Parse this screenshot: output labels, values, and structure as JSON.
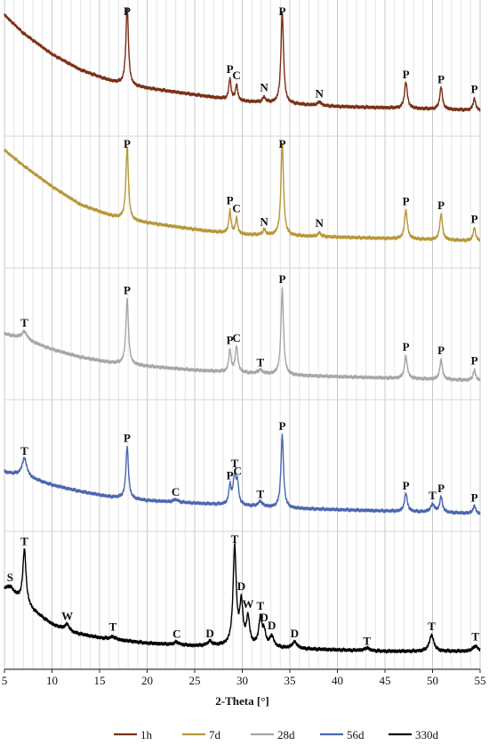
{
  "chart_data": {
    "type": "line",
    "xlabel": "2-Theta [°]",
    "xlim": [
      5,
      55
    ],
    "xticks": [
      5,
      10,
      15,
      20,
      25,
      30,
      35,
      40,
      45,
      50,
      55
    ],
    "grid": "vertical, every 1° (minor)",
    "legend_placement": "bottom-center",
    "series": [
      {
        "name": "1h",
        "color": "#7b2f16",
        "baseline": [
          [
            5,
            0.08
          ],
          [
            7,
            0.22
          ],
          [
            10,
            0.38
          ],
          [
            13,
            0.5
          ],
          [
            16,
            0.58
          ],
          [
            18,
            0.62
          ],
          [
            22,
            0.66
          ],
          [
            26,
            0.7
          ],
          [
            30,
            0.74
          ],
          [
            35,
            0.76
          ],
          [
            40,
            0.78
          ],
          [
            45,
            0.79
          ],
          [
            50,
            0.8
          ],
          [
            55,
            0.81
          ]
        ],
        "peaks": [
          {
            "x": 17.9,
            "h": 0.6,
            "w": 0.16,
            "label": "P"
          },
          {
            "x": 28.7,
            "h": 0.16,
            "w": 0.14,
            "label": "P"
          },
          {
            "x": 29.4,
            "h": 0.12,
            "w": 0.14,
            "label": "C"
          },
          {
            "x": 32.3,
            "h": 0.04,
            "w": 0.18,
            "label": "N"
          },
          {
            "x": 34.2,
            "h": 0.7,
            "w": 0.16,
            "label": "P"
          },
          {
            "x": 38.1,
            "h": 0.03,
            "w": 0.2,
            "label": "N"
          },
          {
            "x": 47.2,
            "h": 0.2,
            "w": 0.18,
            "label": "P"
          },
          {
            "x": 50.9,
            "h": 0.17,
            "w": 0.17,
            "label": "P"
          },
          {
            "x": 54.4,
            "h": 0.09,
            "w": 0.16,
            "label": "P"
          }
        ]
      },
      {
        "name": "7d",
        "color": "#b79736",
        "baseline": [
          [
            5,
            0.1
          ],
          [
            7,
            0.22
          ],
          [
            10,
            0.38
          ],
          [
            13,
            0.52
          ],
          [
            16,
            0.6
          ],
          [
            18,
            0.64
          ],
          [
            22,
            0.68
          ],
          [
            26,
            0.72
          ],
          [
            30,
            0.75
          ],
          [
            35,
            0.76
          ],
          [
            40,
            0.77
          ],
          [
            45,
            0.78
          ],
          [
            50,
            0.79
          ],
          [
            55,
            0.8
          ]
        ],
        "peaks": [
          {
            "x": 17.9,
            "h": 0.56,
            "w": 0.16,
            "label": "P"
          },
          {
            "x": 28.7,
            "h": 0.17,
            "w": 0.14,
            "label": "P"
          },
          {
            "x": 29.4,
            "h": 0.12,
            "w": 0.14,
            "label": "C"
          },
          {
            "x": 32.3,
            "h": 0.04,
            "w": 0.18,
            "label": "N"
          },
          {
            "x": 34.2,
            "h": 0.72,
            "w": 0.16,
            "label": "P"
          },
          {
            "x": 38.1,
            "h": 0.03,
            "w": 0.2,
            "label": "N"
          },
          {
            "x": 47.2,
            "h": 0.22,
            "w": 0.18,
            "label": "P"
          },
          {
            "x": 50.9,
            "h": 0.2,
            "w": 0.17,
            "label": "P"
          },
          {
            "x": 54.4,
            "h": 0.1,
            "w": 0.16,
            "label": "P"
          }
        ]
      },
      {
        "name": "28d",
        "color": "#a6a6a6",
        "baseline": [
          [
            5,
            0.5
          ],
          [
            7,
            0.54
          ],
          [
            10,
            0.62
          ],
          [
            13,
            0.68
          ],
          [
            16,
            0.72
          ],
          [
            20,
            0.75
          ],
          [
            25,
            0.78
          ],
          [
            30,
            0.8
          ],
          [
            35,
            0.82
          ],
          [
            40,
            0.83
          ],
          [
            45,
            0.84
          ],
          [
            50,
            0.85
          ],
          [
            55,
            0.86
          ]
        ],
        "peaks": [
          {
            "x": 7.1,
            "h": 0.06,
            "w": 0.35,
            "label": "T"
          },
          {
            "x": 17.9,
            "h": 0.5,
            "w": 0.16,
            "label": "P"
          },
          {
            "x": 28.7,
            "h": 0.17,
            "w": 0.14,
            "label": "P"
          },
          {
            "x": 29.4,
            "h": 0.2,
            "w": 0.16,
            "label": "C"
          },
          {
            "x": 31.9,
            "h": 0.03,
            "w": 0.25,
            "label": "T"
          },
          {
            "x": 34.2,
            "h": 0.66,
            "w": 0.16,
            "label": "P"
          },
          {
            "x": 47.2,
            "h": 0.17,
            "w": 0.18,
            "label": "P"
          },
          {
            "x": 50.9,
            "h": 0.15,
            "w": 0.17,
            "label": "P"
          },
          {
            "x": 54.4,
            "h": 0.08,
            "w": 0.16,
            "label": "P"
          }
        ]
      },
      {
        "name": "56d",
        "color": "#4a66b0",
        "baseline": [
          [
            5,
            0.55
          ],
          [
            7,
            0.58
          ],
          [
            10,
            0.65
          ],
          [
            13,
            0.7
          ],
          [
            16,
            0.74
          ],
          [
            20,
            0.77
          ],
          [
            25,
            0.79
          ],
          [
            30,
            0.81
          ],
          [
            35,
            0.83
          ],
          [
            40,
            0.84
          ],
          [
            45,
            0.85
          ],
          [
            50,
            0.86
          ],
          [
            55,
            0.87
          ]
        ],
        "peaks": [
          {
            "x": 7.1,
            "h": 0.14,
            "w": 0.3,
            "label": "T"
          },
          {
            "x": 17.9,
            "h": 0.4,
            "w": 0.16,
            "label": "P"
          },
          {
            "x": 23.0,
            "h": 0.02,
            "w": 0.3,
            "label": "C"
          },
          {
            "x": 28.7,
            "h": 0.14,
            "w": 0.14,
            "label": "P"
          },
          {
            "x": 29.2,
            "h": 0.22,
            "w": 0.2,
            "label": "T"
          },
          {
            "x": 29.5,
            "h": 0.14,
            "w": 0.14,
            "label": "C"
          },
          {
            "x": 31.9,
            "h": 0.04,
            "w": 0.25,
            "label": "T"
          },
          {
            "x": 34.2,
            "h": 0.56,
            "w": 0.16,
            "label": "P"
          },
          {
            "x": 47.2,
            "h": 0.14,
            "w": 0.18,
            "label": "P"
          },
          {
            "x": 50.0,
            "h": 0.06,
            "w": 0.25,
            "label": "T"
          },
          {
            "x": 50.9,
            "h": 0.12,
            "w": 0.17,
            "label": "P"
          },
          {
            "x": 54.4,
            "h": 0.06,
            "w": 0.16,
            "label": "P"
          }
        ]
      },
      {
        "name": "330d",
        "color": "#000000",
        "baseline": [
          [
            5,
            0.42
          ],
          [
            6,
            0.46
          ],
          [
            8,
            0.58
          ],
          [
            10,
            0.68
          ],
          [
            12,
            0.74
          ],
          [
            15,
            0.78
          ],
          [
            20,
            0.82
          ],
          [
            25,
            0.84
          ],
          [
            30,
            0.84
          ],
          [
            35,
            0.86
          ],
          [
            40,
            0.87
          ],
          [
            45,
            0.88
          ],
          [
            50,
            0.88
          ],
          [
            55,
            0.88
          ]
        ],
        "peaks": [
          {
            "x": 5.6,
            "h": 0.04,
            "w": 0.35,
            "label": "S"
          },
          {
            "x": 7.1,
            "h": 0.4,
            "w": 0.2,
            "label": "T"
          },
          {
            "x": 11.6,
            "h": 0.05,
            "w": 0.28,
            "label": "W"
          },
          {
            "x": 16.4,
            "h": 0.02,
            "w": 0.3,
            "label": "T"
          },
          {
            "x": 23.1,
            "h": 0.02,
            "w": 0.3,
            "label": "C"
          },
          {
            "x": 26.6,
            "h": 0.03,
            "w": 0.3,
            "label": "D"
          },
          {
            "x": 29.2,
            "h": 0.72,
            "w": 0.2,
            "label": "T"
          },
          {
            "x": 29.9,
            "h": 0.3,
            "w": 0.2,
            "label": "D"
          },
          {
            "x": 30.6,
            "h": 0.2,
            "w": 0.2,
            "label": "W"
          },
          {
            "x": 31.9,
            "h": 0.2,
            "w": 0.2,
            "label": "T"
          },
          {
            "x": 32.3,
            "h": 0.1,
            "w": 0.2,
            "label": "D"
          },
          {
            "x": 33.1,
            "h": 0.08,
            "w": 0.25,
            "label": "D"
          },
          {
            "x": 35.5,
            "h": 0.05,
            "w": 0.3,
            "label": "D"
          },
          {
            "x": 43.1,
            "h": 0.02,
            "w": 0.35,
            "label": "T"
          },
          {
            "x": 49.9,
            "h": 0.12,
            "w": 0.28,
            "label": "T"
          },
          {
            "x": 54.5,
            "h": 0.04,
            "w": 0.3,
            "label": "T"
          }
        ]
      }
    ]
  }
}
